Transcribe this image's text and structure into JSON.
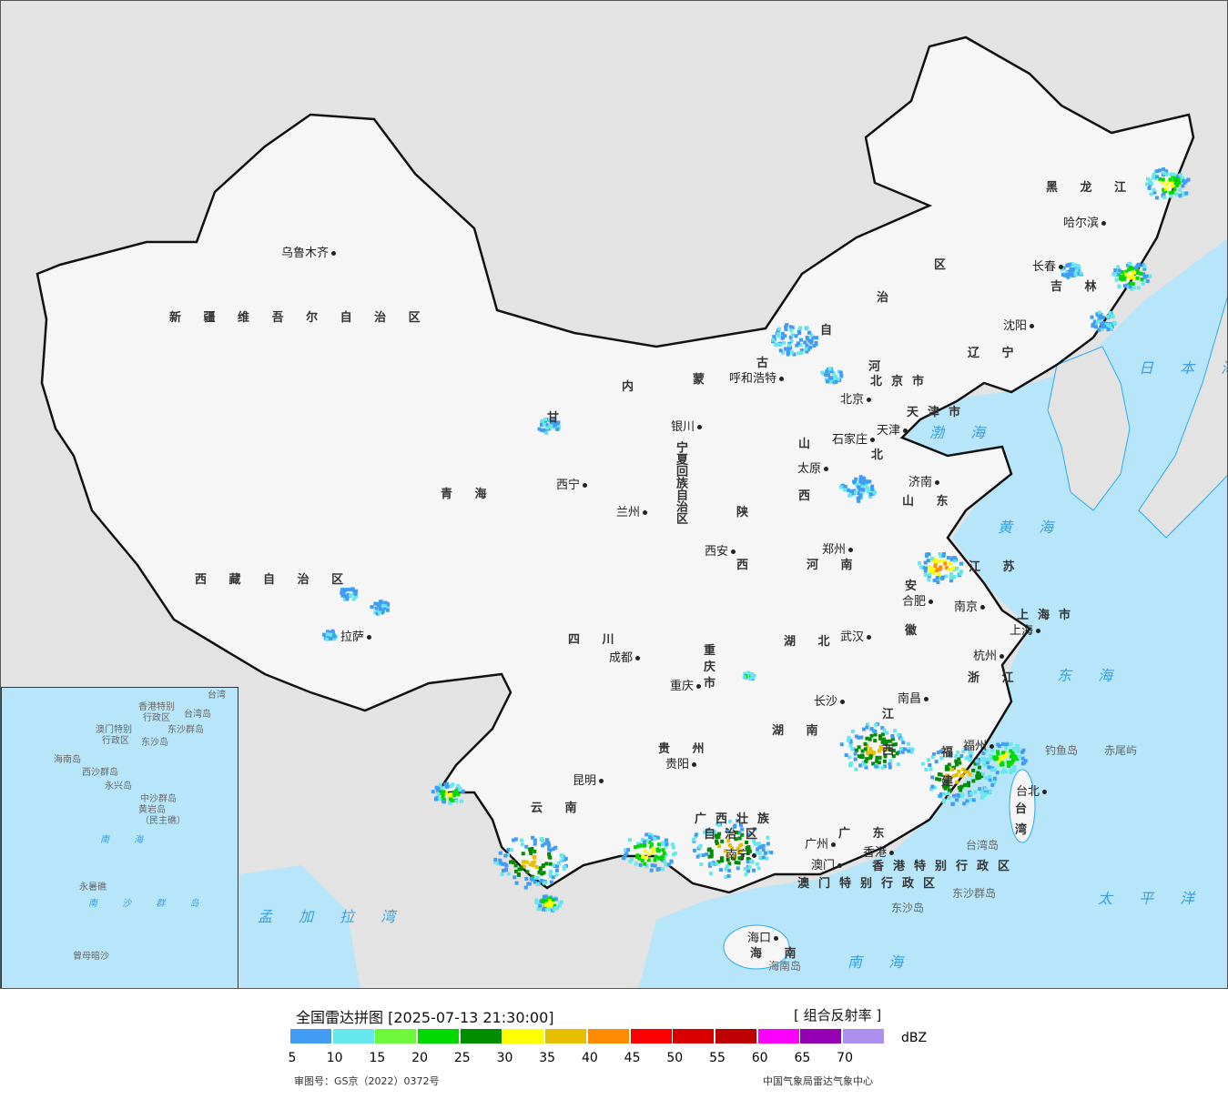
{
  "map": {
    "provinces": [
      "新 疆 维 吾 尔 自 治 区",
      "西 藏 自 治 区",
      "青 海",
      "甘",
      "内",
      "蒙",
      "古",
      "自",
      "治",
      "区",
      "黑 龙 江",
      "吉 林",
      "辽 宁",
      "河",
      "北",
      "山",
      "西",
      "山 东",
      "陕",
      "西",
      "河 南",
      "四 川",
      "湖 北",
      "安",
      "徽",
      "江 苏",
      "上海市",
      "浙 江",
      "江",
      "西",
      "湖 南",
      "贵 州",
      "云 南",
      "广西壮族",
      "自治区",
      "广 东",
      "福",
      "建",
      "台",
      "湾",
      "海 南",
      "香港特别行政区",
      "澳门特别行政区",
      "重",
      "庆",
      "市",
      "宁夏回族自治区",
      "北京市",
      "天津市"
    ],
    "cities": [
      "乌鲁木齐",
      "拉萨",
      "西宁",
      "兰州",
      "银川",
      "呼和浩特",
      "北京",
      "天津",
      "石家庄",
      "太原",
      "济南",
      "郑州",
      "西安",
      "成都",
      "重庆",
      "武汉",
      "合肥",
      "南京",
      "上海",
      "杭州",
      "南昌",
      "长沙",
      "贵阳",
      "昆明",
      "南宁",
      "广州",
      "福州",
      "台北",
      "哈尔滨",
      "长春",
      "沈阳",
      "海口",
      "香港",
      "澳门"
    ],
    "seas": [
      "日 本 海",
      "渤 海",
      "黄 海",
      "东 海",
      "太 平 洋",
      "南 海",
      "孟 加 拉 湾"
    ],
    "islands": [
      "钓鱼岛",
      "赤尾屿",
      "台湾岛",
      "东沙群岛",
      "东沙岛",
      "海南岛"
    ],
    "inset": [
      "南 海",
      "西沙群岛",
      "永兴岛",
      "中沙群岛",
      "黄岩岛",
      "（民主礁）",
      "永暑礁",
      "南 沙 群 岛",
      "曾母暗沙",
      "东沙群岛",
      "东沙岛",
      "台湾岛",
      "海南岛",
      "台湾",
      "香港特别",
      "行政区",
      "澳门特别",
      "行政区"
    ]
  },
  "legend": {
    "title": "全国雷达拼图 [2025-07-13 21:30:00]",
    "product": "[ 组合反射率 ]",
    "unit": "dBZ",
    "colors": [
      "#419cf3",
      "#66e7ec",
      "#6ef83c",
      "#00da00",
      "#008d00",
      "#ffff00",
      "#e6c000",
      "#ff8c00",
      "#ff0000",
      "#d80000",
      "#bd0000",
      "#ff00ff",
      "#9600b4",
      "#ad8fee"
    ],
    "ticks": [
      "5",
      "10",
      "15",
      "20",
      "25",
      "30",
      "35",
      "40",
      "45",
      "50",
      "55",
      "60",
      "65",
      "70"
    ],
    "approval": "审图号：GS京（2022）0372号",
    "source": "中国气象局雷达气象中心"
  }
}
